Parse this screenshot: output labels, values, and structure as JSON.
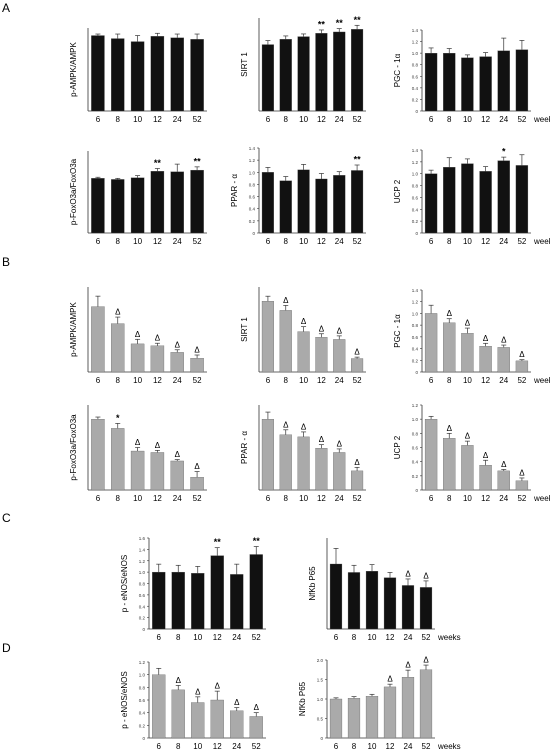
{
  "figure": {
    "weeks_label": "weeks",
    "panels": [
      {
        "letter": "A"
      },
      {
        "letter": "B"
      },
      {
        "letter": "C"
      },
      {
        "letter": "D"
      }
    ]
  },
  "chart_data": [
    {
      "type": "bar",
      "panel": "A",
      "ylabel": "p-AMPK/AMPK",
      "categories": [
        "6",
        "8",
        "10",
        "12",
        "24",
        "52"
      ],
      "ylim": [
        0,
        1.1
      ],
      "yticks": [],
      "bar_color": "#111111",
      "values": [
        1.0,
        0.96,
        0.92,
        0.99,
        0.97,
        0.95
      ],
      "errors": [
        0.02,
        0.06,
        0.08,
        0.04,
        0.05,
        0.07
      ],
      "annotations": [
        "",
        "",
        "",
        "",
        "",
        ""
      ]
    },
    {
      "type": "bar",
      "panel": "A",
      "ylabel": "SIRT 1",
      "categories": [
        "6",
        "8",
        "10",
        "12",
        "24",
        "52"
      ],
      "ylim": [
        0,
        1.4
      ],
      "yticks": [],
      "bar_color": "#111111",
      "values": [
        1.0,
        1.08,
        1.12,
        1.17,
        1.19,
        1.23
      ],
      "errors": [
        0.06,
        0.05,
        0.04,
        0.05,
        0.05,
        0.06
      ],
      "annotations": [
        "",
        "",
        "",
        "**",
        "**",
        "**"
      ]
    },
    {
      "type": "bar",
      "panel": "A",
      "ylabel": "PGC - 1α",
      "categories": [
        "6",
        "8",
        "10",
        "12",
        "24",
        "52"
      ],
      "ylim": [
        0,
        1.4
      ],
      "yticks": [
        "0",
        "0.2",
        "0.4",
        "0.6",
        "0.8",
        "1.0",
        "1.2",
        "1.4"
      ],
      "bar_color": "#111111",
      "values": [
        1.0,
        1.0,
        0.92,
        0.94,
        1.04,
        1.06
      ],
      "errors": [
        0.09,
        0.08,
        0.05,
        0.07,
        0.22,
        0.16
      ],
      "annotations": [
        "",
        "",
        "",
        "",
        "",
        ""
      ],
      "weeks": true
    },
    {
      "type": "bar",
      "panel": "A",
      "ylabel": "p-FoxO3a/FoxO3a",
      "categories": [
        "6",
        "8",
        "10",
        "12",
        "24",
        "52"
      ],
      "ylim": [
        0,
        1.5
      ],
      "yticks": [],
      "bar_color": "#111111",
      "values": [
        1.0,
        0.98,
        1.01,
        1.13,
        1.12,
        1.15
      ],
      "errors": [
        0.02,
        0.02,
        0.04,
        0.05,
        0.14,
        0.06
      ],
      "annotations": [
        "",
        "",
        "",
        "**",
        "",
        "**"
      ]
    },
    {
      "type": "bar",
      "panel": "A",
      "ylabel": "PPAR - α",
      "categories": [
        "6",
        "8",
        "10",
        "12",
        "24",
        "52"
      ],
      "ylim": [
        0,
        1.4
      ],
      "yticks": [
        "0",
        "0.2",
        "0.4",
        "0.6",
        "0.8",
        "1.0",
        "1.2",
        "1.4"
      ],
      "bar_color": "#111111",
      "values": [
        1.0,
        0.86,
        1.04,
        0.89,
        0.95,
        1.03
      ],
      "errors": [
        0.08,
        0.07,
        0.09,
        0.09,
        0.06,
        0.09
      ],
      "annotations": [
        "",
        "",
        "",
        "",
        "",
        "**"
      ]
    },
    {
      "type": "bar",
      "panel": "A",
      "ylabel": "UCP 2",
      "categories": [
        "6",
        "8",
        "10",
        "12",
        "24",
        "52"
      ],
      "ylim": [
        0,
        1.4
      ],
      "yticks": [
        "0",
        "0.2",
        "0.4",
        "0.6",
        "0.8",
        "1.0",
        "1.2",
        "1.4"
      ],
      "bar_color": "#111111",
      "values": [
        1.0,
        1.11,
        1.17,
        1.04,
        1.22,
        1.14
      ],
      "errors": [
        0.06,
        0.16,
        0.08,
        0.08,
        0.06,
        0.18
      ],
      "annotations": [
        "",
        "",
        "",
        "",
        "*",
        ""
      ],
      "weeks": true
    },
    {
      "type": "bar",
      "panel": "B",
      "ylabel": "p-AMPK/AMPK",
      "categories": [
        "6",
        "8",
        "10",
        "12",
        "24",
        "52"
      ],
      "ylim": [
        0,
        1.3
      ],
      "yticks": [],
      "bar_color": "#aaaaaa",
      "values": [
        1.0,
        0.74,
        0.43,
        0.4,
        0.3,
        0.21
      ],
      "errors": [
        0.16,
        0.1,
        0.07,
        0.04,
        0.04,
        0.05
      ],
      "annotations": [
        "",
        "Δ",
        "Δ",
        "Δ",
        "Δ",
        "Δ"
      ]
    },
    {
      "type": "bar",
      "panel": "B",
      "ylabel": "SIRT 1",
      "categories": [
        "6",
        "8",
        "10",
        "12",
        "24",
        "52"
      ],
      "ylim": [
        0,
        1.2
      ],
      "yticks": [],
      "bar_color": "#aaaaaa",
      "values": [
        1.0,
        0.87,
        0.57,
        0.49,
        0.46,
        0.19
      ],
      "errors": [
        0.07,
        0.07,
        0.07,
        0.05,
        0.05,
        0.02
      ],
      "annotations": [
        "",
        "Δ",
        "Δ",
        "Δ",
        "Δ",
        "Δ"
      ]
    },
    {
      "type": "bar",
      "panel": "B",
      "ylabel": "PGC - 1α",
      "categories": [
        "6",
        "8",
        "10",
        "12",
        "24",
        "52"
      ],
      "ylim": [
        0,
        1.4
      ],
      "yticks": [
        "0",
        "0.2",
        "0.4",
        "0.6",
        "0.8",
        "1.0",
        "1.2",
        "1.4"
      ],
      "bar_color": "#aaaaaa",
      "values": [
        1.0,
        0.84,
        0.66,
        0.44,
        0.42,
        0.19
      ],
      "errors": [
        0.14,
        0.07,
        0.09,
        0.05,
        0.04,
        0.02
      ],
      "annotations": [
        "",
        "Δ",
        "Δ",
        "Δ",
        "Δ",
        "Δ"
      ],
      "weeks": true
    },
    {
      "type": "bar",
      "panel": "B",
      "ylabel": "p-FoxO3a/FoxO3a",
      "categories": [
        "6",
        "8",
        "10",
        "12",
        "24",
        "52"
      ],
      "ylim": [
        0,
        1.2
      ],
      "yticks": [],
      "bar_color": "#aaaaaa",
      "values": [
        1.0,
        0.87,
        0.55,
        0.53,
        0.41,
        0.18
      ],
      "errors": [
        0.03,
        0.07,
        0.05,
        0.03,
        0.02,
        0.08
      ],
      "annotations": [
        "",
        "*",
        "Δ",
        "Δ",
        "Δ",
        "Δ"
      ]
    },
    {
      "type": "bar",
      "panel": "B",
      "ylabel": "PPAR - α",
      "categories": [
        "6",
        "8",
        "10",
        "12",
        "24",
        "52"
      ],
      "ylim": [
        0,
        1.2
      ],
      "yticks": [],
      "bar_color": "#aaaaaa",
      "values": [
        1.0,
        0.78,
        0.75,
        0.59,
        0.53,
        0.27
      ],
      "errors": [
        0.1,
        0.07,
        0.07,
        0.05,
        0.05,
        0.05
      ],
      "annotations": [
        "",
        "Δ",
        "Δ",
        "Δ",
        "Δ",
        "Δ"
      ]
    },
    {
      "type": "bar",
      "panel": "B",
      "ylabel": "UCP 2",
      "categories": [
        "6",
        "8",
        "10",
        "12",
        "24",
        "52"
      ],
      "ylim": [
        0,
        1.2
      ],
      "yticks": [
        "0",
        "0.2",
        "0.4",
        "0.6",
        "0.8",
        "1.0",
        "1.2"
      ],
      "bar_color": "#aaaaaa",
      "values": [
        1.0,
        0.73,
        0.63,
        0.35,
        0.27,
        0.13
      ],
      "errors": [
        0.04,
        0.07,
        0.06,
        0.07,
        0.02,
        0.04
      ],
      "annotations": [
        "",
        "Δ",
        "Δ",
        "Δ",
        "Δ",
        "Δ"
      ],
      "weeks": true
    },
    {
      "type": "bar",
      "panel": "C",
      "ylabel": "p - eNOS/eNOS",
      "categories": [
        "6",
        "8",
        "10",
        "12",
        "24",
        "52"
      ],
      "ylim": [
        0,
        1.6
      ],
      "yticks": [
        "0",
        "0.2",
        "0.4",
        "0.6",
        "0.8",
        "1.0",
        "1.2",
        "1.4",
        "1.6"
      ],
      "bar_color": "#111111",
      "values": [
        1.0,
        1.0,
        0.98,
        1.29,
        0.96,
        1.31
      ],
      "errors": [
        0.14,
        0.12,
        0.12,
        0.14,
        0.18,
        0.14
      ],
      "annotations": [
        "",
        "",
        "",
        "**",
        "",
        "**"
      ]
    },
    {
      "type": "bar",
      "panel": "C",
      "ylabel": "NfKb P65",
      "categories": [
        "6",
        "8",
        "10",
        "12",
        "24",
        "52"
      ],
      "ylim": [
        0,
        1.4
      ],
      "yticks": [],
      "bar_color": "#111111",
      "values": [
        1.0,
        0.87,
        0.89,
        0.79,
        0.67,
        0.64
      ],
      "errors": [
        0.24,
        0.11,
        0.1,
        0.08,
        0.1,
        0.1
      ],
      "annotations": [
        "",
        "",
        "",
        "",
        "Δ",
        "Δ"
      ],
      "weeks": true
    },
    {
      "type": "bar",
      "panel": "D",
      "ylabel": "p - eNOS/eNOS",
      "categories": [
        "6",
        "8",
        "10",
        "12",
        "24",
        "52"
      ],
      "ylim": [
        0,
        1.2
      ],
      "yticks": [
        "0",
        "0.2",
        "0.4",
        "0.6",
        "0.8",
        "1.0",
        "1.2"
      ],
      "bar_color": "#aaaaaa",
      "values": [
        1.0,
        0.76,
        0.56,
        0.6,
        0.43,
        0.34
      ],
      "errors": [
        0.1,
        0.07,
        0.09,
        0.14,
        0.05,
        0.06
      ],
      "annotations": [
        "",
        "Δ",
        "Δ",
        "Δ",
        "Δ",
        "Δ"
      ]
    },
    {
      "type": "bar",
      "panel": "D",
      "ylabel": "NfKb P65",
      "categories": [
        "6",
        "8",
        "10",
        "12",
        "24",
        "52"
      ],
      "ylim": [
        0,
        2.0
      ],
      "yticks": [
        "0",
        "0.5",
        "1.0",
        "1.5",
        "2.0"
      ],
      "bar_color": "#aaaaaa",
      "values": [
        1.0,
        1.02,
        1.07,
        1.31,
        1.56,
        1.75
      ],
      "errors": [
        0.03,
        0.04,
        0.05,
        0.07,
        0.18,
        0.12
      ],
      "annotations": [
        "",
        "",
        "",
        "Δ",
        "Δ",
        "Δ"
      ],
      "weeks": true
    }
  ]
}
